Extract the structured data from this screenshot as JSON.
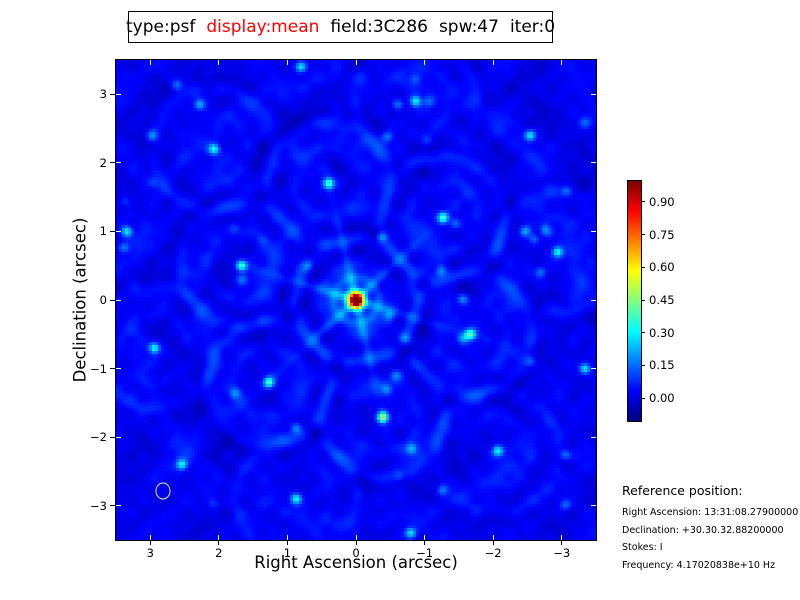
{
  "title_box": {
    "items": [
      {
        "text": "type:psf",
        "color": "#000000"
      },
      {
        "text": "display:mean",
        "color": "#ff0000"
      },
      {
        "text": "field:3C286",
        "color": "#000000"
      },
      {
        "text": "spw:47",
        "color": "#000000"
      },
      {
        "text": "iter:0",
        "color": "#000000"
      }
    ]
  },
  "axes": {
    "x": {
      "label": "Right Ascension (arcsec)",
      "tick_labels": [
        "3",
        "2",
        "1",
        "0",
        "−1",
        "−2",
        "−3"
      ]
    },
    "y": {
      "label": "Declination (arcsec)",
      "tick_labels": [
        "3",
        "2",
        "1",
        "0",
        "−1",
        "−2",
        "−3"
      ]
    }
  },
  "colorbar": {
    "tick_labels": [
      "0.90",
      "0.75",
      "0.60",
      "0.45",
      "0.30",
      "0.15",
      "0.00"
    ]
  },
  "reference": {
    "heading": "Reference position:",
    "lines": [
      "Right Ascension: 13:31:08.27900000",
      "Declination: +30.30.32.88200000",
      "Stokes: I",
      "Frequency: 4.17020838e+10 Hz"
    ]
  },
  "chart_data": {
    "type": "heatmap",
    "title": "type:psf display:mean field:3C286 spw:47 iter:0",
    "xlabel": "Right Ascension (arcsec)",
    "ylabel": "Declination (arcsec)",
    "xlim": [
      3.5,
      -3.5
    ],
    "ylim": [
      -3.5,
      3.5
    ],
    "xticks": [
      3,
      2,
      1,
      0,
      -1,
      -2,
      -3
    ],
    "yticks": [
      3,
      2,
      1,
      0,
      -1,
      -2,
      -3
    ],
    "colormap": "jet",
    "vmin": -0.1,
    "vmax": 1.0,
    "colorbar_ticks": [
      0.9,
      0.75,
      0.6,
      0.45,
      0.3,
      0.15,
      0.0
    ],
    "peak": {
      "x": 0,
      "y": 0,
      "value": 1.0
    },
    "beam_ellipse": {
      "x": 2.82,
      "y": -2.79,
      "rx": 0.095,
      "ry": 0.11
    },
    "render": {
      "grid": 160,
      "extent": 3.5,
      "seed": 11,
      "base": 0.02,
      "noise_amp": 0.045,
      "lattice_a": [
        1.67,
        0.5
      ],
      "lattice_b": [
        0.4,
        1.7
      ],
      "lobe_amp": 0.42,
      "lobe_decay": 8,
      "lobe_sigma": 0.055,
      "peak_amp": 1.05,
      "peak_sigma": 0.085,
      "halo_r": 0.33,
      "halo_amp": 0.1,
      "halo_sigma": 0.06,
      "arm_angle": 17,
      "arm_amp": 0.16,
      "arm_sigma": 0.05,
      "arm_decay": 0.9,
      "outer_rings": [
        1.35,
        2.3,
        3.25
      ],
      "outer_amp": 0.025,
      "outer_sigma": 0.09,
      "cell_ring": {
        "r1": 0.88,
        "a1": 0.05,
        "s1": 0.075,
        "r2": 0.5,
        "a2": 0.038,
        "s2": 0.07,
        "r3": 1.04,
        "a3": -0.03,
        "s3": 0.07
      },
      "speckles": {
        "count": 42,
        "amp_min": 0.06,
        "amp_max": 0.2,
        "sigma": 0.055
      }
    }
  }
}
